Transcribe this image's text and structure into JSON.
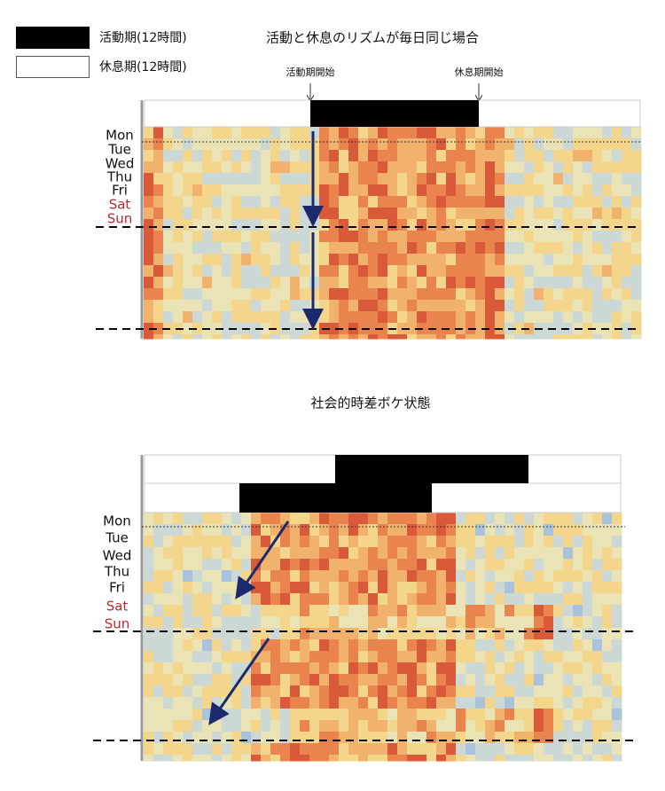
{
  "legend": [
    {
      "label": "活動期(12時間)"
    },
    {
      "label": "休息期(12時間)"
    }
  ],
  "panels": [
    {
      "title": "活動と休息のリズムが毎日同じ場合",
      "annotations": [
        "活動期開始",
        "休息期開始"
      ],
      "days": [
        "Mon",
        "Tue",
        "Wed",
        "Thu",
        "Fri",
        "Sat",
        "Sun"
      ]
    },
    {
      "title": "社会的時差ボケ状態",
      "days": [
        "Mon",
        "Tue",
        "Wed",
        "Thu",
        "Fri",
        "Sat",
        "Sun"
      ]
    }
  ]
}
